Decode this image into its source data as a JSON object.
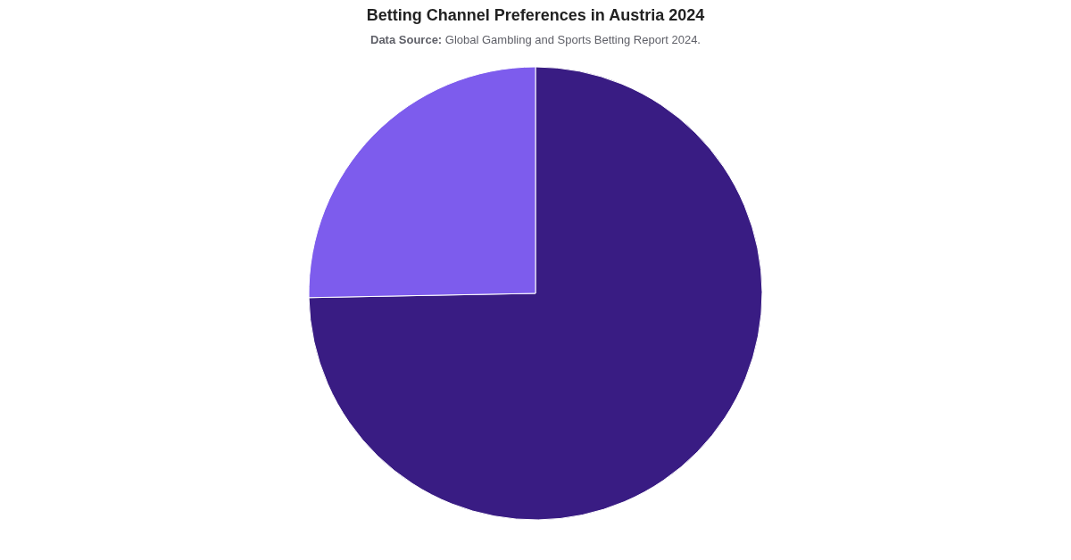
{
  "chart_data": {
    "type": "pie",
    "title": "Betting Channel Preferences in Austria 2024",
    "subtitle": "Data Source: Global Gambling and Sports Betting Report 2024.",
    "categories": [
      null,
      null
    ],
    "values": [
      74.7,
      25.3
    ],
    "colors": [
      "#391c83",
      "#7d5ced"
    ]
  }
}
